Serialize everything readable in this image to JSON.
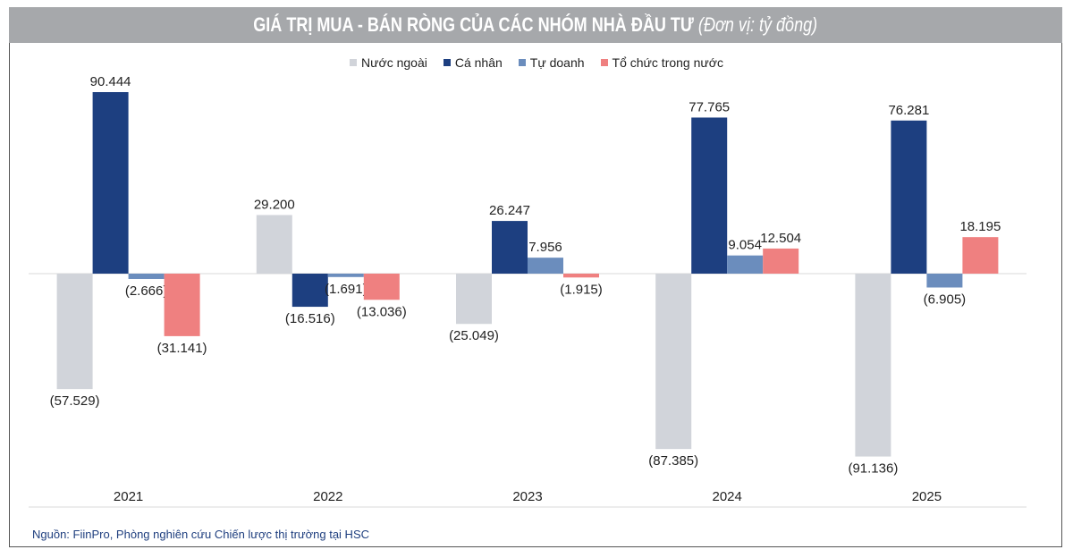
{
  "header": {
    "title": "GIÁ TRỊ MUA - BÁN RÒNG CỦA CÁC NHÓM NHÀ ĐẦU TƯ",
    "unit": "(Đơn vị: tỷ đồng)"
  },
  "source": "Nguồn: FiinPro, Phòng nghiên cứu Chiến lược thị trường tại HSC",
  "chart_data": {
    "type": "bar",
    "title": "GIÁ TRỊ MUA - BÁN RÒNG CỦA CÁC NHÓM NHÀ ĐẦU TƯ (Đơn vị: tỷ đồng)",
    "categories": [
      "2021",
      "2022",
      "2023",
      "2024",
      "2025"
    ],
    "series": [
      {
        "name": "Nước ngoài",
        "color": "#d1d4da",
        "values": [
          -57529,
          29200,
          -25049,
          -87385,
          -91136
        ],
        "labels": [
          "(57.529)",
          "29.200",
          "(25.049)",
          "(87.385)",
          "(91.136)"
        ]
      },
      {
        "name": "Cá nhân",
        "color": "#1d3f80",
        "values": [
          90444,
          -16516,
          26247,
          77765,
          76281
        ],
        "labels": [
          "90.444",
          "(16.516)",
          "26.247",
          "77.765",
          "76.281"
        ]
      },
      {
        "name": "Tự doanh",
        "color": "#6b8dbd",
        "values": [
          -2666,
          -1691,
          7956,
          9054,
          -6905
        ],
        "labels": [
          "(2.666)",
          "(1.691)",
          "7.956",
          "9.054",
          "(6.905)"
        ]
      },
      {
        "name": "Tổ chức trong nước",
        "color": "#ef8080",
        "values": [
          -31141,
          -13036,
          -1915,
          12504,
          18195
        ],
        "labels": [
          "(31.141)",
          "(13.036)",
          "(1.915)",
          "12.504",
          "18.195"
        ]
      }
    ],
    "xlabel": "",
    "ylabel": "",
    "ylim": [
      -95000,
      95000
    ],
    "grid": false,
    "legend": "top-center"
  }
}
